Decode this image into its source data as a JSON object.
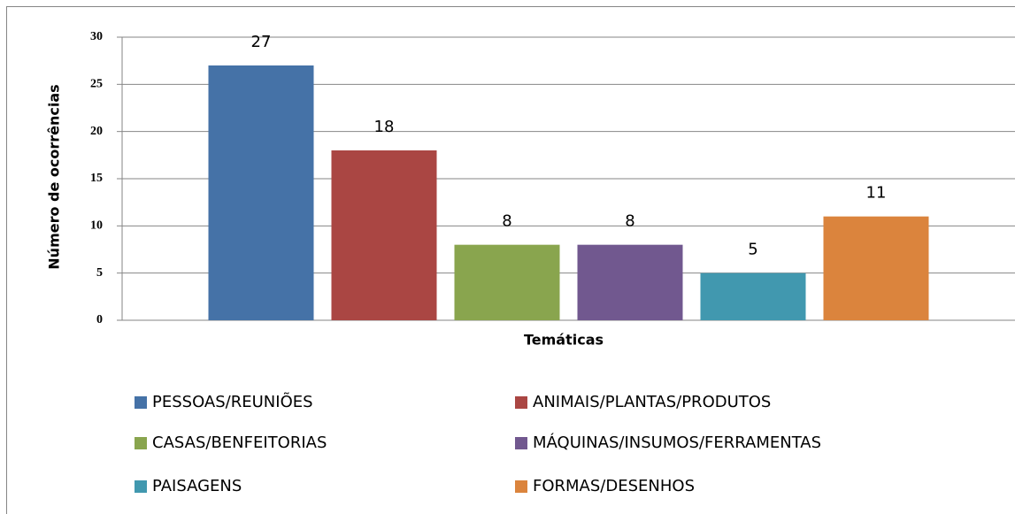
{
  "chart_data": {
    "type": "bar",
    "xlabel": "Temáticas",
    "ylabel": "Número de ocorrências",
    "categories": [
      null
    ],
    "series": [
      {
        "name": "PESSOAS/REUNIÕES",
        "color": "#4572a7",
        "values": [
          27
        ]
      },
      {
        "name": "ANIMAIS/PLANTAS/PRODUTOS",
        "color": "#aa4643",
        "values": [
          18
        ]
      },
      {
        "name": "CASAS/BENFEITORIAS",
        "color": "#89a54e",
        "values": [
          8
        ]
      },
      {
        "name": "MÁQUINAS/INSUMOS/FERRAMENTAS",
        "color": "#71588f",
        "values": [
          8
        ]
      },
      {
        "name": "PAISAGENS",
        "color": "#4198af",
        "values": [
          5
        ]
      },
      {
        "name": "FORMAS/DESENHOS",
        "color": "#db843d",
        "values": [
          11
        ]
      }
    ],
    "ylim": [
      0,
      30
    ],
    "yticks": [
      0,
      5,
      10,
      15,
      20,
      25,
      30
    ],
    "grid": true,
    "legend": "bottom"
  }
}
